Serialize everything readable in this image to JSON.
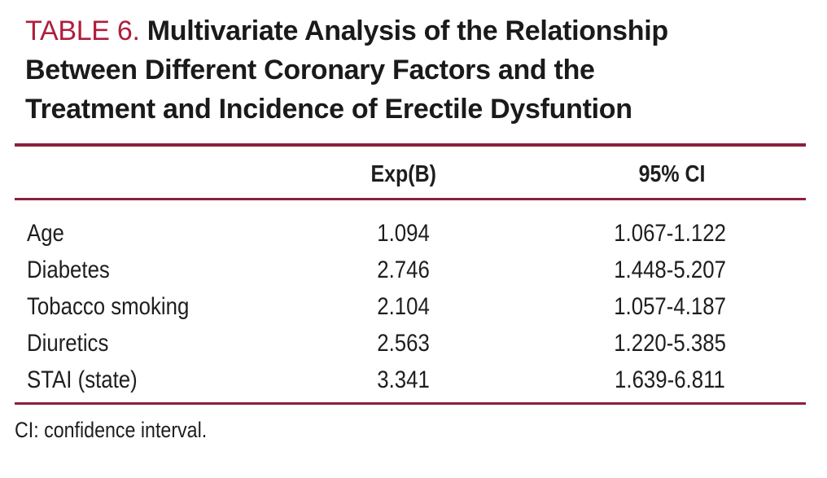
{
  "colors": {
    "accent_crimson": "#b01e3c",
    "rule_maroon": "#8b1f3e",
    "text_black": "#1b1b1b"
  },
  "caption": {
    "label": "TABLE 6.",
    "line1": "Multivariate Analysis of the Relationship",
    "line2": "Between Different Coronary Factors and the",
    "line3": "Treatment and Incidence of Erectile Dysfuntion"
  },
  "table": {
    "col_headers": {
      "exp_b": "Exp(B)",
      "ci": "95% CI"
    },
    "rows": [
      {
        "factor": "Age",
        "exp_b": "1.094",
        "ci": "1.067-1.122"
      },
      {
        "factor": "Diabetes",
        "exp_b": "2.746",
        "ci": "1.448-5.207"
      },
      {
        "factor": "Tobacco smoking",
        "exp_b": "2.104",
        "ci": "1.057-4.187"
      },
      {
        "factor": "Diuretics",
        "exp_b": "2.563",
        "ci": "1.220-5.385"
      },
      {
        "factor": "STAI (state)",
        "exp_b": "3.341",
        "ci": "1.639-6.811"
      }
    ]
  },
  "footnote": "CI: confidence interval."
}
